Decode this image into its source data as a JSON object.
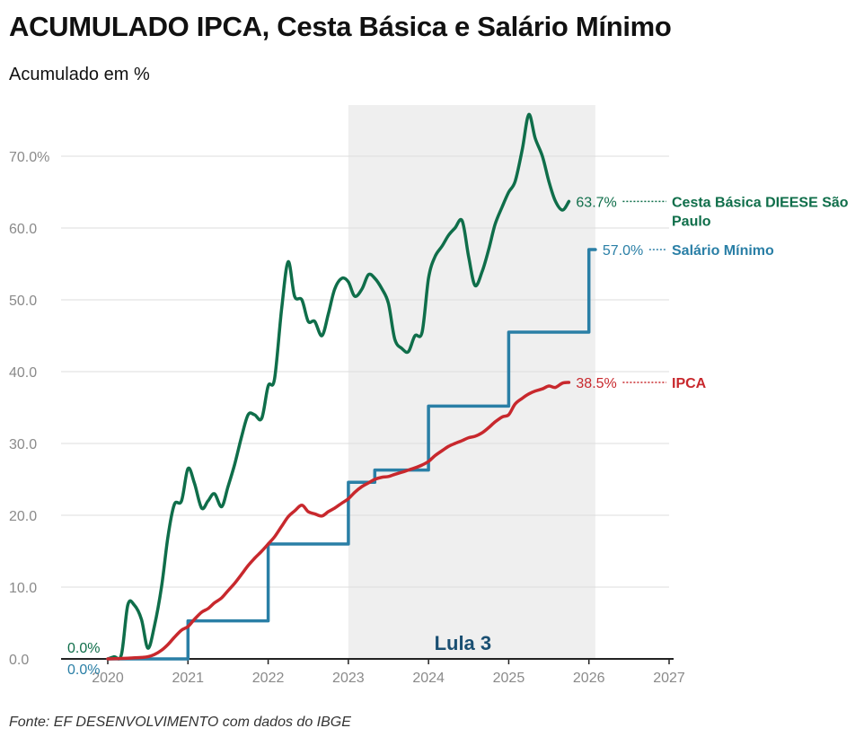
{
  "header": {
    "title": "ACUMULADO IPCA, Cesta Básica e Salário Mínimo",
    "subtitle": "Acumulado em %"
  },
  "footer": {
    "source": "Fonte: EF DESENVOLVIMENTO com dados do IBGE"
  },
  "chart_data": {
    "type": "line",
    "title": "ACUMULADO IPCA, Cesta Básica e Salário Mínimo",
    "subtitle": "Acumulado em %",
    "xlabel": "",
    "ylabel": "",
    "xlim": [
      2020,
      2027
    ],
    "ylim": [
      0,
      75
    ],
    "grid": true,
    "x_ticks": [
      "2020",
      "2021",
      "2022",
      "2023",
      "2024",
      "2025",
      "2026",
      "2027"
    ],
    "y_ticks": [
      "0.0",
      "10.0",
      "20.0",
      "30.0",
      "40.0",
      "50.0",
      "60.0",
      "70.0%"
    ],
    "shaded_region": {
      "label": "Lula 3",
      "x_start": 2023.0,
      "x_end": 2026.08,
      "color": "#efefef",
      "label_color": "#1a4f72"
    },
    "start_labels": [
      {
        "text": "0.0%",
        "series": "Cesta Básica DIEESE São Paulo",
        "color": "#0f6e4a"
      },
      {
        "text": "0.0%",
        "series": "Salário Mínimo",
        "color": "#2a7fa6"
      }
    ],
    "series": [
      {
        "name": "Cesta Básica DIEESE São Paulo",
        "color": "#0f6e4a",
        "end_label": "63.7%",
        "name_lines": [
          "Cesta Básica DIEESE São",
          "Paulo"
        ],
        "points": [
          [
            2020.0,
            0
          ],
          [
            2020.08,
            0.3
          ],
          [
            2020.17,
            0.6
          ],
          [
            2020.25,
            7.5
          ],
          [
            2020.33,
            7.5
          ],
          [
            2020.42,
            5.5
          ],
          [
            2020.5,
            1.5
          ],
          [
            2020.58,
            4.5
          ],
          [
            2020.67,
            10
          ],
          [
            2020.75,
            17
          ],
          [
            2020.83,
            21.5
          ],
          [
            2020.92,
            22
          ],
          [
            2021.0,
            26.5
          ],
          [
            2021.08,
            24.5
          ],
          [
            2021.17,
            21
          ],
          [
            2021.25,
            22
          ],
          [
            2021.33,
            23
          ],
          [
            2021.42,
            21.2
          ],
          [
            2021.5,
            24
          ],
          [
            2021.58,
            27
          ],
          [
            2021.67,
            31
          ],
          [
            2021.75,
            34
          ],
          [
            2021.83,
            34
          ],
          [
            2021.92,
            33.5
          ],
          [
            2022.0,
            38
          ],
          [
            2022.08,
            39
          ],
          [
            2022.17,
            49
          ],
          [
            2022.25,
            55.3
          ],
          [
            2022.33,
            50.5
          ],
          [
            2022.42,
            50
          ],
          [
            2022.5,
            47
          ],
          [
            2022.58,
            47
          ],
          [
            2022.67,
            45
          ],
          [
            2022.75,
            48
          ],
          [
            2022.83,
            51.5
          ],
          [
            2022.92,
            53
          ],
          [
            2023.0,
            52.5
          ],
          [
            2023.08,
            50.5
          ],
          [
            2023.17,
            51.5
          ],
          [
            2023.25,
            53.5
          ],
          [
            2023.33,
            53
          ],
          [
            2023.42,
            51.5
          ],
          [
            2023.5,
            49.5
          ],
          [
            2023.58,
            44.5
          ],
          [
            2023.67,
            43.2
          ],
          [
            2023.75,
            42.8
          ],
          [
            2023.83,
            45
          ],
          [
            2023.92,
            45.5
          ],
          [
            2024.0,
            53
          ],
          [
            2024.08,
            56
          ],
          [
            2024.17,
            57.5
          ],
          [
            2024.25,
            59
          ],
          [
            2024.33,
            60
          ],
          [
            2024.42,
            61
          ],
          [
            2024.5,
            56
          ],
          [
            2024.58,
            52
          ],
          [
            2024.67,
            54
          ],
          [
            2024.75,
            57
          ],
          [
            2024.83,
            60.5
          ],
          [
            2024.92,
            63
          ],
          [
            2025.0,
            65
          ],
          [
            2025.08,
            66.5
          ],
          [
            2025.17,
            71
          ],
          [
            2025.25,
            75.8
          ],
          [
            2025.33,
            72.5
          ],
          [
            2025.42,
            70
          ],
          [
            2025.5,
            66.5
          ],
          [
            2025.58,
            63.8
          ],
          [
            2025.67,
            62.5
          ],
          [
            2025.75,
            63.7
          ]
        ]
      },
      {
        "name": "Salário Mínimo",
        "color": "#2a7fa6",
        "end_label": "57.0%",
        "name_lines": [
          "Salário Mínimo"
        ],
        "points": [
          [
            2020.0,
            0
          ],
          [
            2021.0,
            0
          ],
          [
            2021.0,
            5.3
          ],
          [
            2022.0,
            5.3
          ],
          [
            2022.0,
            16.0
          ],
          [
            2023.0,
            16.0
          ],
          [
            2023.0,
            24.6
          ],
          [
            2023.33,
            24.6
          ],
          [
            2023.33,
            26.3
          ],
          [
            2024.0,
            26.3
          ],
          [
            2024.0,
            35.2
          ],
          [
            2025.0,
            35.2
          ],
          [
            2025.0,
            45.5
          ],
          [
            2026.0,
            45.5
          ],
          [
            2026.0,
            57.0
          ],
          [
            2026.08,
            57.0
          ]
        ]
      },
      {
        "name": "IPCA",
        "color": "#c8282d",
        "end_label": "38.5%",
        "name_lines": [
          "IPCA"
        ],
        "points": [
          [
            2020.0,
            0
          ],
          [
            2020.25,
            0.1
          ],
          [
            2020.42,
            0.2
          ],
          [
            2020.5,
            0.3
          ],
          [
            2020.58,
            0.6
          ],
          [
            2020.67,
            1.2
          ],
          [
            2020.75,
            2.0
          ],
          [
            2020.83,
            3.0
          ],
          [
            2020.92,
            4.0
          ],
          [
            2021.0,
            4.5
          ],
          [
            2021.08,
            5.5
          ],
          [
            2021.17,
            6.5
          ],
          [
            2021.25,
            7.0
          ],
          [
            2021.33,
            7.8
          ],
          [
            2021.42,
            8.5
          ],
          [
            2021.5,
            9.5
          ],
          [
            2021.58,
            10.5
          ],
          [
            2021.67,
            11.8
          ],
          [
            2021.75,
            13.0
          ],
          [
            2021.83,
            14.0
          ],
          [
            2021.92,
            15.0
          ],
          [
            2022.0,
            16.0
          ],
          [
            2022.08,
            17.0
          ],
          [
            2022.17,
            18.5
          ],
          [
            2022.25,
            19.8
          ],
          [
            2022.33,
            20.6
          ],
          [
            2022.42,
            21.4
          ],
          [
            2022.5,
            20.5
          ],
          [
            2022.58,
            20.2
          ],
          [
            2022.67,
            19.9
          ],
          [
            2022.75,
            20.5
          ],
          [
            2022.83,
            21.0
          ],
          [
            2022.92,
            21.7
          ],
          [
            2023.0,
            22.3
          ],
          [
            2023.08,
            23.2
          ],
          [
            2023.17,
            24.0
          ],
          [
            2023.25,
            24.5
          ],
          [
            2023.33,
            25.0
          ],
          [
            2023.42,
            25.3
          ],
          [
            2023.5,
            25.4
          ],
          [
            2023.58,
            25.7
          ],
          [
            2023.67,
            26.0
          ],
          [
            2023.75,
            26.3
          ],
          [
            2023.83,
            26.6
          ],
          [
            2023.92,
            27.0
          ],
          [
            2024.0,
            27.5
          ],
          [
            2024.08,
            28.3
          ],
          [
            2024.17,
            29.0
          ],
          [
            2024.25,
            29.6
          ],
          [
            2024.33,
            30.0
          ],
          [
            2024.42,
            30.4
          ],
          [
            2024.5,
            30.8
          ],
          [
            2024.58,
            31.0
          ],
          [
            2024.67,
            31.5
          ],
          [
            2024.75,
            32.2
          ],
          [
            2024.83,
            33.0
          ],
          [
            2024.92,
            33.7
          ],
          [
            2025.0,
            34.0
          ],
          [
            2025.08,
            35.5
          ],
          [
            2025.17,
            36.3
          ],
          [
            2025.25,
            36.9
          ],
          [
            2025.33,
            37.3
          ],
          [
            2025.42,
            37.6
          ],
          [
            2025.5,
            38.0
          ],
          [
            2025.58,
            37.8
          ],
          [
            2025.67,
            38.4
          ],
          [
            2025.75,
            38.5
          ]
        ]
      }
    ]
  }
}
